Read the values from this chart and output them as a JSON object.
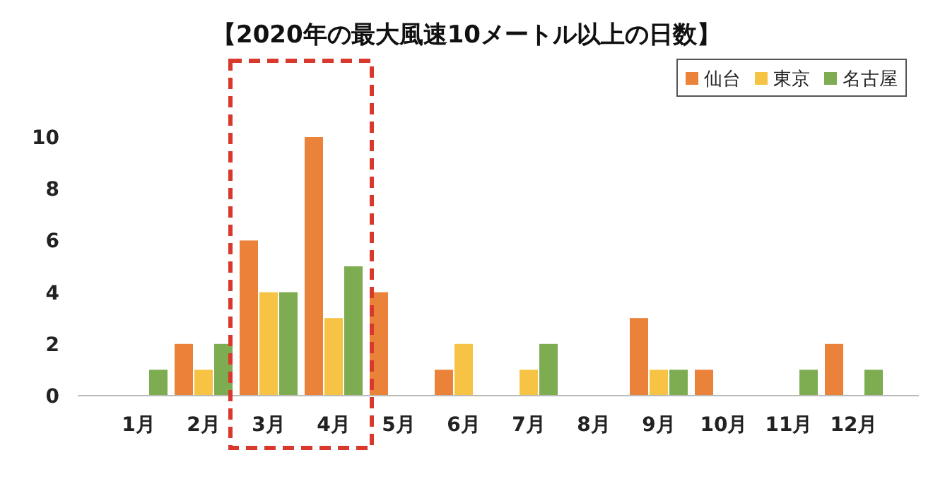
{
  "chart_data": {
    "type": "bar",
    "title": "【2020年の最大風速10メートル以上の日数】",
    "categories": [
      "1月",
      "2月",
      "3月",
      "4月",
      "5月",
      "6月",
      "7月",
      "8月",
      "9月",
      "10月",
      "11月",
      "12月"
    ],
    "series": [
      {
        "name": "仙台",
        "color": "#ea8239",
        "values": [
          0,
          2,
          6,
          10,
          4,
          1,
          0,
          0,
          3,
          1,
          0,
          2
        ]
      },
      {
        "name": "東京",
        "color": "#f6c344",
        "values": [
          0,
          1,
          4,
          3,
          0,
          2,
          1,
          0,
          1,
          0,
          0,
          0
        ]
      },
      {
        "name": "名古屋",
        "color": "#7dac51",
        "values": [
          1,
          2,
          4,
          5,
          0,
          0,
          2,
          0,
          1,
          0,
          1,
          1
        ]
      }
    ],
    "ylim": [
      0,
      10
    ],
    "yticks": [
      0,
      2,
      4,
      6,
      8,
      10
    ],
    "grid": false,
    "legend": "top right"
  }
}
